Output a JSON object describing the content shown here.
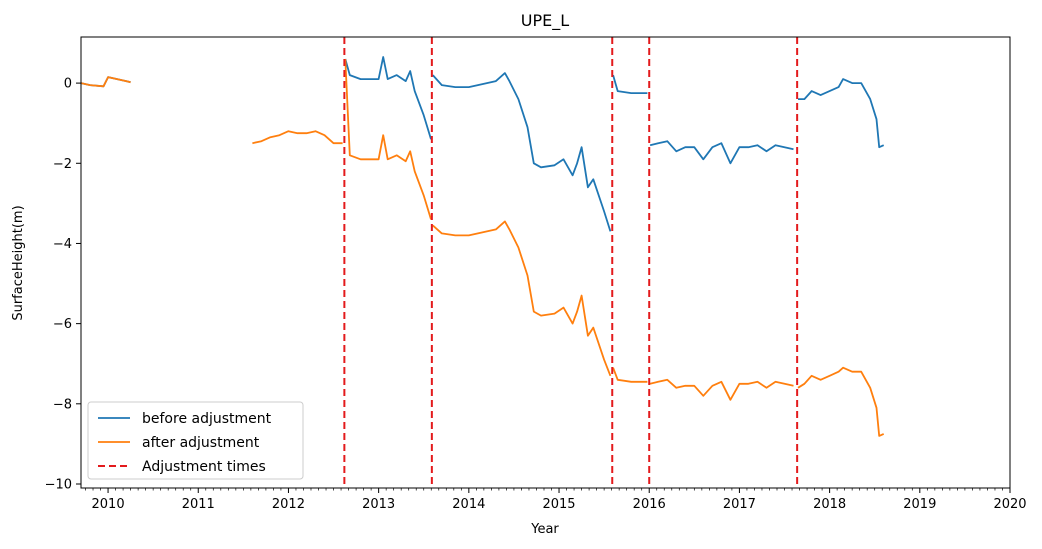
{
  "chart_data": {
    "type": "line",
    "title": "UPE_L",
    "xlabel": "Year",
    "ylabel": "SurfaceHeight(m)",
    "xlim": [
      2009.7,
      2020.0
    ],
    "ylim": [
      -10.1,
      1.15
    ],
    "x_ticks": [
      "2010",
      "2011",
      "2012",
      "2013",
      "2014",
      "2015",
      "2016",
      "2017",
      "2018",
      "2019",
      "2020"
    ],
    "y_ticks": [
      "0",
      "−2",
      "−4",
      "−6",
      "−8",
      "−10"
    ],
    "grid": false,
    "legend_position": "bottom-left",
    "series": [
      {
        "name": "before adjustment",
        "color": "#1f77b4",
        "segments": [
          [
            [
              2009.7,
              0.0
            ],
            [
              2009.8,
              -0.05
            ],
            [
              2009.95,
              -0.08
            ],
            [
              2010.0,
              0.15
            ],
            [
              2010.1,
              0.1
            ],
            [
              2010.2,
              0.05
            ],
            [
              2010.25,
              0.02
            ]
          ],
          [
            [
              2012.63,
              0.6
            ],
            [
              2012.68,
              0.2
            ],
            [
              2012.8,
              0.1
            ],
            [
              2013.0,
              0.1
            ],
            [
              2013.05,
              0.65
            ],
            [
              2013.1,
              0.1
            ],
            [
              2013.2,
              0.2
            ],
            [
              2013.3,
              0.05
            ],
            [
              2013.35,
              0.3
            ],
            [
              2013.4,
              -0.2
            ],
            [
              2013.5,
              -0.8
            ],
            [
              2013.58,
              -1.4
            ]
          ],
          [
            [
              2013.6,
              0.2
            ],
            [
              2013.7,
              -0.05
            ],
            [
              2013.85,
              -0.1
            ],
            [
              2014.0,
              -0.1
            ],
            [
              2014.1,
              -0.05
            ],
            [
              2014.3,
              0.05
            ],
            [
              2014.4,
              0.25
            ],
            [
              2014.45,
              0.05
            ],
            [
              2014.55,
              -0.4
            ],
            [
              2014.65,
              -1.1
            ],
            [
              2014.72,
              -2.0
            ],
            [
              2014.8,
              -2.1
            ],
            [
              2014.95,
              -2.05
            ],
            [
              2015.05,
              -1.9
            ],
            [
              2015.15,
              -2.3
            ],
            [
              2015.2,
              -2.0
            ],
            [
              2015.25,
              -1.6
            ],
            [
              2015.32,
              -2.6
            ],
            [
              2015.38,
              -2.4
            ],
            [
              2015.5,
              -3.2
            ],
            [
              2015.57,
              -3.7
            ]
          ],
          [
            [
              2015.6,
              0.2
            ],
            [
              2015.65,
              -0.2
            ],
            [
              2015.8,
              -0.25
            ],
            [
              2015.98,
              -0.25
            ]
          ],
          [
            [
              2016.01,
              -1.55
            ],
            [
              2016.1,
              -1.5
            ],
            [
              2016.2,
              -1.45
            ],
            [
              2016.3,
              -1.7
            ],
            [
              2016.4,
              -1.6
            ],
            [
              2016.5,
              -1.6
            ],
            [
              2016.6,
              -1.9
            ],
            [
              2016.7,
              -1.6
            ],
            [
              2016.8,
              -1.5
            ],
            [
              2016.9,
              -2.0
            ],
            [
              2017.0,
              -1.6
            ],
            [
              2017.1,
              -1.6
            ],
            [
              2017.2,
              -1.55
            ],
            [
              2017.3,
              -1.7
            ],
            [
              2017.4,
              -1.55
            ],
            [
              2017.5,
              -1.6
            ],
            [
              2017.6,
              -1.65
            ]
          ],
          [
            [
              2017.65,
              -0.4
            ],
            [
              2017.72,
              -0.4
            ],
            [
              2017.8,
              -0.2
            ],
            [
              2017.9,
              -0.3
            ],
            [
              2018.0,
              -0.2
            ],
            [
              2018.1,
              -0.1
            ],
            [
              2018.15,
              0.1
            ],
            [
              2018.25,
              0.0
            ],
            [
              2018.35,
              0.0
            ],
            [
              2018.45,
              -0.4
            ],
            [
              2018.52,
              -0.9
            ],
            [
              2018.55,
              -1.6
            ],
            [
              2018.6,
              -1.55
            ]
          ]
        ]
      },
      {
        "name": "after adjustment",
        "color": "#ff7f0e",
        "segments": [
          [
            [
              2009.7,
              0.0
            ],
            [
              2009.8,
              -0.05
            ],
            [
              2009.95,
              -0.08
            ],
            [
              2010.0,
              0.15
            ],
            [
              2010.1,
              0.1
            ],
            [
              2010.2,
              0.05
            ],
            [
              2010.25,
              0.02
            ]
          ],
          [
            [
              2011.6,
              -1.5
            ],
            [
              2011.7,
              -1.45
            ],
            [
              2011.8,
              -1.35
            ],
            [
              2011.9,
              -1.3
            ],
            [
              2012.0,
              -1.2
            ],
            [
              2012.1,
              -1.25
            ],
            [
              2012.2,
              -1.25
            ],
            [
              2012.3,
              -1.2
            ],
            [
              2012.4,
              -1.3
            ],
            [
              2012.5,
              -1.5
            ],
            [
              2012.6,
              -1.5
            ]
          ],
          [
            [
              2012.63,
              0.6
            ],
            [
              2012.68,
              -1.8
            ],
            [
              2012.8,
              -1.9
            ],
            [
              2013.0,
              -1.9
            ],
            [
              2013.05,
              -1.3
            ],
            [
              2013.1,
              -1.9
            ],
            [
              2013.2,
              -1.8
            ],
            [
              2013.3,
              -1.95
            ],
            [
              2013.35,
              -1.7
            ],
            [
              2013.4,
              -2.2
            ],
            [
              2013.5,
              -2.8
            ],
            [
              2013.58,
              -3.4
            ]
          ],
          [
            [
              2013.6,
              -3.55
            ],
            [
              2013.7,
              -3.75
            ],
            [
              2013.85,
              -3.8
            ],
            [
              2014.0,
              -3.8
            ],
            [
              2014.1,
              -3.75
            ],
            [
              2014.3,
              -3.65
            ],
            [
              2014.4,
              -3.45
            ],
            [
              2014.45,
              -3.65
            ],
            [
              2014.55,
              -4.1
            ],
            [
              2014.65,
              -4.8
            ],
            [
              2014.72,
              -5.7
            ],
            [
              2014.8,
              -5.8
            ],
            [
              2014.95,
              -5.75
            ],
            [
              2015.05,
              -5.6
            ],
            [
              2015.15,
              -6.0
            ],
            [
              2015.2,
              -5.7
            ],
            [
              2015.25,
              -5.3
            ],
            [
              2015.32,
              -6.3
            ],
            [
              2015.38,
              -6.1
            ],
            [
              2015.5,
              -6.9
            ],
            [
              2015.57,
              -7.3
            ]
          ],
          [
            [
              2015.6,
              -7.1
            ],
            [
              2015.65,
              -7.4
            ],
            [
              2015.8,
              -7.45
            ],
            [
              2015.98,
              -7.45
            ]
          ],
          [
            [
              2016.01,
              -7.5
            ],
            [
              2016.1,
              -7.45
            ],
            [
              2016.2,
              -7.4
            ],
            [
              2016.3,
              -7.6
            ],
            [
              2016.4,
              -7.55
            ],
            [
              2016.5,
              -7.55
            ],
            [
              2016.6,
              -7.8
            ],
            [
              2016.7,
              -7.55
            ],
            [
              2016.8,
              -7.45
            ],
            [
              2016.9,
              -7.9
            ],
            [
              2017.0,
              -7.5
            ],
            [
              2017.1,
              -7.5
            ],
            [
              2017.2,
              -7.45
            ],
            [
              2017.3,
              -7.6
            ],
            [
              2017.4,
              -7.45
            ],
            [
              2017.5,
              -7.5
            ],
            [
              2017.6,
              -7.55
            ]
          ],
          [
            [
              2017.65,
              -7.6
            ],
            [
              2017.72,
              -7.5
            ],
            [
              2017.8,
              -7.3
            ],
            [
              2017.9,
              -7.4
            ],
            [
              2018.0,
              -7.3
            ],
            [
              2018.1,
              -7.2
            ],
            [
              2018.15,
              -7.1
            ],
            [
              2018.25,
              -7.2
            ],
            [
              2018.35,
              -7.2
            ],
            [
              2018.45,
              -7.6
            ],
            [
              2018.52,
              -8.1
            ],
            [
              2018.55,
              -8.8
            ],
            [
              2018.6,
              -8.75
            ]
          ]
        ]
      },
      {
        "name": "Adjustment times",
        "color": "#e31a1c",
        "style": "dashed",
        "x": [
          2012.62,
          2013.59,
          2015.59,
          2016.0,
          2017.64
        ]
      }
    ]
  }
}
